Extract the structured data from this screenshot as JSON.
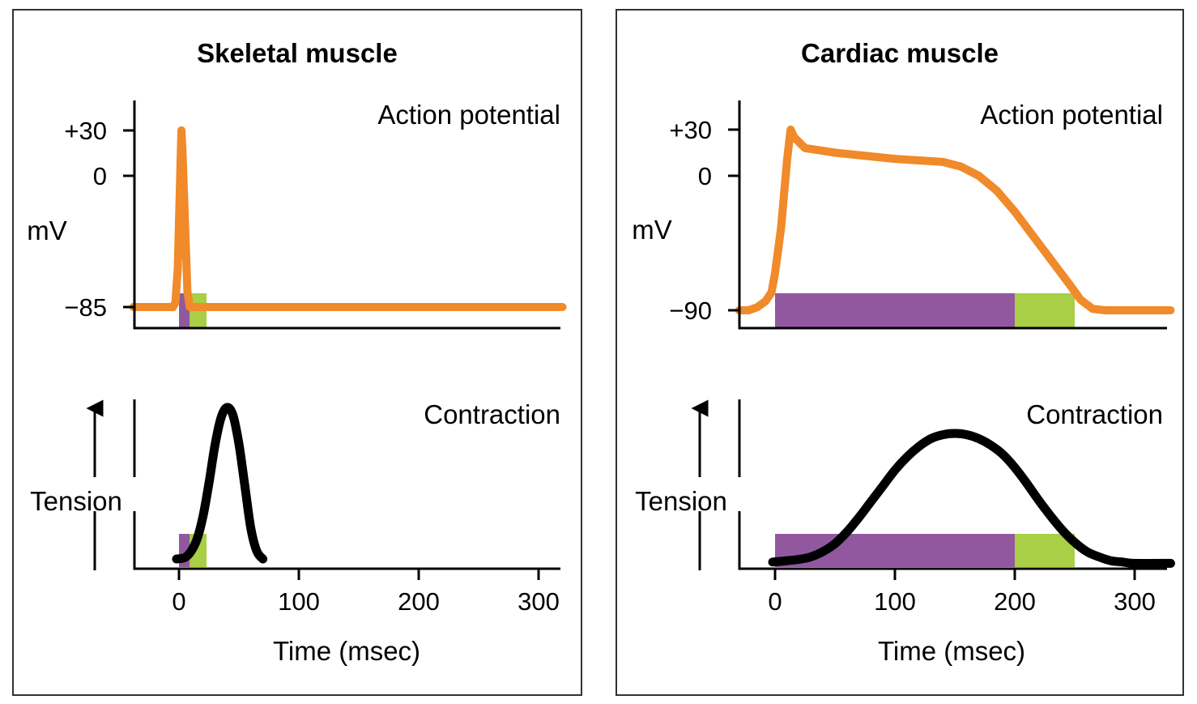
{
  "chart_data": [
    {
      "type": "line",
      "title": "Skeletal muscle",
      "panel": "left",
      "ap": {
        "label": "Action potential",
        "ylabel": "mV",
        "yticks": [
          "+30",
          "0",
          "−85"
        ],
        "ytick_values": [
          30,
          0,
          -85
        ],
        "ylim": [
          -96,
          50
        ],
        "color": "#f08a2a",
        "series": [
          [
            -38,
            -85
          ],
          [
            -5,
            -85
          ],
          [
            -3,
            -82
          ],
          [
            -1,
            -60
          ],
          [
            1,
            0
          ],
          [
            2,
            30
          ],
          [
            3,
            15
          ],
          [
            5,
            -30
          ],
          [
            7,
            -75
          ],
          [
            9,
            -85
          ],
          [
            320,
            -85
          ]
        ]
      },
      "contraction": {
        "label": "Contraction",
        "ylabel": "Tension",
        "color": "#000000",
        "series": [
          [
            -2,
            0
          ],
          [
            5,
            0.01
          ],
          [
            10,
            0.05
          ],
          [
            15,
            0.13
          ],
          [
            20,
            0.28
          ],
          [
            25,
            0.5
          ],
          [
            30,
            0.75
          ],
          [
            35,
            0.93
          ],
          [
            40,
            1.0
          ],
          [
            45,
            0.95
          ],
          [
            50,
            0.76
          ],
          [
            55,
            0.48
          ],
          [
            60,
            0.2
          ],
          [
            65,
            0.05
          ],
          [
            70,
            0
          ]
        ]
      },
      "refractory": {
        "absolute": {
          "start": 0,
          "end": 9,
          "color": "#9158a0"
        },
        "relative": {
          "start": 9,
          "end": 23,
          "color": "#a8cf45"
        }
      },
      "xlabel": "Time (msec)",
      "xticks": [
        0,
        100,
        200,
        300
      ],
      "xlim": [
        -38,
        320
      ]
    },
    {
      "type": "line",
      "title": "Cardiac muscle",
      "panel": "right",
      "ap": {
        "label": "Action potential",
        "ylabel": "mV",
        "yticks": [
          "+30",
          "0",
          "−90"
        ],
        "ytick_values": [
          30,
          0,
          -90
        ],
        "ylim": [
          -102,
          50
        ],
        "color": "#f08a2a",
        "series": [
          [
            -30,
            -90
          ],
          [
            -22,
            -90
          ],
          [
            -15,
            -88
          ],
          [
            -8,
            -84
          ],
          [
            -3,
            -78
          ],
          [
            0,
            -65
          ],
          [
            5,
            -35
          ],
          [
            10,
            10
          ],
          [
            13,
            30
          ],
          [
            16,
            25
          ],
          [
            25,
            18
          ],
          [
            50,
            15
          ],
          [
            100,
            11
          ],
          [
            140,
            9
          ],
          [
            155,
            6
          ],
          [
            170,
            0
          ],
          [
            185,
            -10
          ],
          [
            200,
            -24
          ],
          [
            215,
            -40
          ],
          [
            230,
            -56
          ],
          [
            245,
            -72
          ],
          [
            255,
            -83
          ],
          [
            265,
            -89
          ],
          [
            275,
            -90
          ],
          [
            330,
            -90
          ]
        ]
      },
      "contraction": {
        "label": "Contraction",
        "ylabel": "Tension",
        "color": "#000000",
        "series": [
          [
            -2,
            0.02
          ],
          [
            10,
            0.03
          ],
          [
            20,
            0.04
          ],
          [
            30,
            0.06
          ],
          [
            40,
            0.1
          ],
          [
            50,
            0.16
          ],
          [
            60,
            0.25
          ],
          [
            70,
            0.36
          ],
          [
            80,
            0.48
          ],
          [
            90,
            0.6
          ],
          [
            100,
            0.72
          ],
          [
            110,
            0.82
          ],
          [
            120,
            0.9
          ],
          [
            130,
            0.96
          ],
          [
            140,
            0.99
          ],
          [
            150,
            1.0
          ],
          [
            160,
            0.99
          ],
          [
            170,
            0.96
          ],
          [
            180,
            0.91
          ],
          [
            190,
            0.84
          ],
          [
            200,
            0.74
          ],
          [
            210,
            0.62
          ],
          [
            220,
            0.49
          ],
          [
            230,
            0.37
          ],
          [
            240,
            0.26
          ],
          [
            250,
            0.17
          ],
          [
            260,
            0.1
          ],
          [
            270,
            0.06
          ],
          [
            280,
            0.03
          ],
          [
            290,
            0.02
          ],
          [
            300,
            0.01
          ],
          [
            330,
            0.01
          ]
        ]
      },
      "refractory": {
        "absolute": {
          "start": 0,
          "end": 200,
          "color": "#9158a0"
        },
        "relative": {
          "start": 200,
          "end": 250,
          "color": "#a8cf45"
        }
      },
      "xlabel": "Time (msec)",
      "xticks": [
        0,
        100,
        200,
        300
      ],
      "xlim": [
        -30,
        330
      ]
    }
  ]
}
